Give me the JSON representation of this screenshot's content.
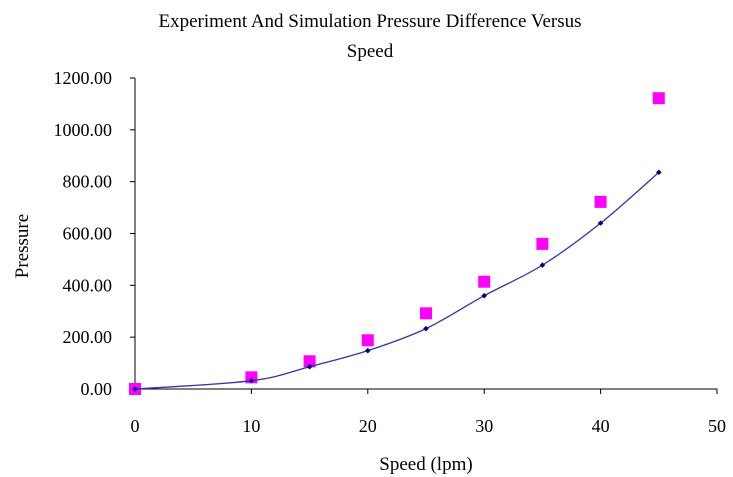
{
  "chart_data": {
    "type": "scatter",
    "title_lines": [
      "Experiment And Simulation Pressure Difference  Versus",
      "Speed"
    ],
    "xlabel": "Speed (lpm)",
    "ylabel": "Pressure",
    "xlim": [
      0,
      50
    ],
    "ylim": [
      0,
      1200
    ],
    "x_ticks": [
      "0",
      "10",
      "20",
      "30",
      "40",
      "50"
    ],
    "y_ticks": [
      "0.00",
      "200.00",
      "400.00",
      "600.00",
      "800.00",
      "1000.00",
      "1200.00"
    ],
    "grid": false,
    "legend": "none",
    "series": [
      {
        "style": "markers",
        "marker": "square",
        "color": "#ff00ff",
        "x": [
          0,
          10,
          15,
          20,
          25,
          30,
          35,
          40,
          45
        ],
        "y": [
          0,
          45,
          107,
          188,
          292,
          414,
          560,
          722,
          1122
        ]
      },
      {
        "style": "smooth-line",
        "marker": "diamond",
        "color": "#3333aa",
        "marker_color": "#000080",
        "x": [
          0,
          10,
          15,
          20,
          25,
          30,
          35,
          40,
          45
        ],
        "y": [
          0,
          32,
          86,
          148,
          233,
          360,
          478,
          640,
          836
        ]
      }
    ]
  }
}
